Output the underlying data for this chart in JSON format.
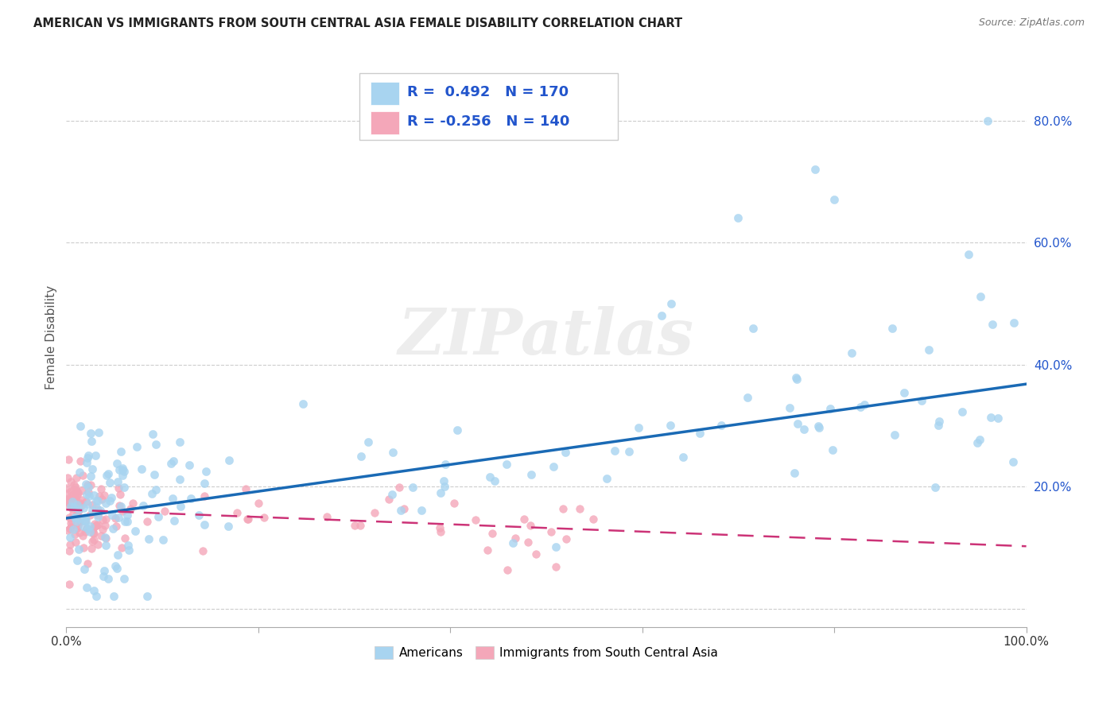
{
  "title": "AMERICAN VS IMMIGRANTS FROM SOUTH CENTRAL ASIA FEMALE DISABILITY CORRELATION CHART",
  "source": "Source: ZipAtlas.com",
  "ylabel": "Female Disability",
  "xlim": [
    0.0,
    1.0
  ],
  "ylim": [
    -0.03,
    0.92
  ],
  "yticks": [
    0.0,
    0.2,
    0.4,
    0.6,
    0.8
  ],
  "yticklabels": [
    "",
    "20.0%",
    "40.0%",
    "60.0%",
    "80.0%"
  ],
  "xtick_left_label": "0.0%",
  "xtick_right_label": "100.0%",
  "blue_R": "0.492",
  "blue_N": "170",
  "pink_R": "-0.256",
  "pink_N": "140",
  "blue_color": "#a8d4f0",
  "pink_color": "#f4a7b9",
  "blue_line_color": "#1a6ab5",
  "pink_line_color": "#cc3377",
  "legend_text_color": "#2255cc",
  "watermark": "ZIPatlas",
  "legend_label_blue": "Americans",
  "legend_label_pink": "Immigrants from South Central Asia",
  "blue_intercept": 0.148,
  "blue_slope": 0.22,
  "pink_intercept": 0.162,
  "pink_slope": -0.06,
  "seed": 42
}
